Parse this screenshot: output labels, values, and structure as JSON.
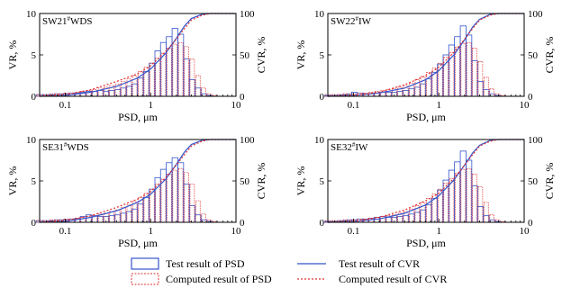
{
  "chart_data": [
    {
      "type": "bar",
      "panel_label": "SW21#WDS",
      "xlabel": "PSD, μm",
      "ylabel_left": "VR, %",
      "ylabel_right": "CVR, %",
      "x_scale": "log",
      "xlim": [
        0.05,
        10
      ],
      "ylim_left": [
        0,
        10
      ],
      "ylim_right": [
        0,
        100
      ],
      "x_ticks": [
        "0.1",
        "1",
        "10"
      ],
      "y_ticks_left": [
        "0",
        "5",
        "10"
      ],
      "y_ticks_right": [
        "0",
        "50",
        "100"
      ],
      "x": [
        0.05,
        0.06,
        0.07,
        0.08,
        0.09,
        0.1,
        0.12,
        0.14,
        0.16,
        0.19,
        0.22,
        0.26,
        0.3,
        0.35,
        0.41,
        0.48,
        0.56,
        0.65,
        0.76,
        0.89,
        1.04,
        1.21,
        1.41,
        1.65,
        1.93,
        2.25,
        2.63,
        3.07,
        3.59,
        4.19,
        4.89,
        5.71,
        6.67
      ],
      "series": [
        {
          "name": "Test result of PSD",
          "values": [
            0.2,
            0.2,
            0.2,
            0.3,
            0.3,
            0.3,
            0.4,
            0.4,
            0.5,
            0.6,
            0.6,
            0.7,
            0.6,
            0.7,
            0.8,
            1.0,
            1.2,
            1.5,
            2.2,
            3.0,
            4.0,
            5.5,
            6.5,
            7.2,
            8.2,
            7.5,
            4.5,
            2.0,
            1.0,
            0.3,
            0.1,
            0.0,
            0.0
          ]
        },
        {
          "name": "Computed result of PSD",
          "values": [
            0.2,
            0.2,
            0.3,
            0.3,
            0.3,
            0.4,
            0.4,
            0.5,
            0.6,
            0.7,
            0.8,
            1.0,
            1.1,
            1.3,
            1.5,
            1.8,
            2.1,
            2.5,
            3.0,
            3.5,
            4.0,
            4.6,
            5.2,
            5.8,
            6.3,
            6.5,
            6.0,
            4.5,
            2.5,
            1.0,
            0.3,
            0.1,
            0.0
          ]
        },
        {
          "name": "Test result of CVR",
          "x": [
            0.05,
            0.1,
            0.2,
            0.4,
            0.7,
            1.0,
            1.5,
            2.0,
            2.5,
            3.0,
            4.0,
            5.0,
            10
          ],
          "values": [
            0,
            1,
            5,
            12,
            22,
            33,
            52,
            70,
            85,
            94,
            99,
            100,
            100
          ]
        },
        {
          "name": "Computed result of CVR",
          "x": [
            0.05,
            0.1,
            0.2,
            0.4,
            0.7,
            1.0,
            1.5,
            2.0,
            2.5,
            3.0,
            4.0,
            5.0,
            10
          ],
          "values": [
            0,
            2,
            8,
            18,
            27,
            37,
            54,
            69,
            82,
            92,
            98,
            100,
            100
          ]
        }
      ]
    },
    {
      "type": "bar",
      "panel_label": "SW22#IW",
      "xlabel": "PSD, μm",
      "ylabel_left": "VR, %",
      "ylabel_right": "CVR, %",
      "x_scale": "log",
      "xlim": [
        0.05,
        10
      ],
      "ylim_left": [
        0,
        10
      ],
      "ylim_right": [
        0,
        100
      ],
      "x_ticks": [
        "0.1",
        "1",
        "10"
      ],
      "y_ticks_left": [
        "0",
        "5",
        "10"
      ],
      "y_ticks_right": [
        "0",
        "50",
        "100"
      ],
      "x": [
        0.05,
        0.06,
        0.07,
        0.08,
        0.09,
        0.1,
        0.12,
        0.14,
        0.16,
        0.19,
        0.22,
        0.26,
        0.3,
        0.35,
        0.41,
        0.48,
        0.56,
        0.65,
        0.76,
        0.89,
        1.04,
        1.21,
        1.41,
        1.65,
        1.93,
        2.25,
        2.63,
        3.07,
        3.59,
        4.19,
        4.89,
        5.71,
        6.67
      ],
      "series": [
        {
          "name": "Test result of PSD",
          "values": [
            0.1,
            0.1,
            0.2,
            0.2,
            0.3,
            0.5,
            0.4,
            0.3,
            0.3,
            0.4,
            0.5,
            0.5,
            0.5,
            0.6,
            0.7,
            0.9,
            1.1,
            1.5,
            2.1,
            2.9,
            3.9,
            5.0,
            6.2,
            7.2,
            8.5,
            7.4,
            4.3,
            1.8,
            0.8,
            0.3,
            0.1,
            0.0,
            0.0
          ]
        },
        {
          "name": "Computed result of PSD",
          "values": [
            0.2,
            0.2,
            0.2,
            0.3,
            0.3,
            0.3,
            0.4,
            0.4,
            0.5,
            0.6,
            0.7,
            0.8,
            0.9,
            1.1,
            1.3,
            1.6,
            2.0,
            2.4,
            2.9,
            3.4,
            4.0,
            4.7,
            5.3,
            5.9,
            6.4,
            6.5,
            5.8,
            4.2,
            2.3,
            0.9,
            0.3,
            0.1,
            0.0
          ]
        },
        {
          "name": "Test result of CVR",
          "x": [
            0.05,
            0.1,
            0.2,
            0.4,
            0.7,
            1.0,
            1.5,
            2.0,
            2.5,
            3.0,
            4.0,
            5.0,
            10
          ],
          "values": [
            0,
            1,
            4,
            10,
            20,
            31,
            50,
            68,
            84,
            93,
            99,
            100,
            100
          ]
        },
        {
          "name": "Computed result of CVR",
          "x": [
            0.05,
            0.1,
            0.2,
            0.4,
            0.7,
            1.0,
            1.5,
            2.0,
            2.5,
            3.0,
            4.0,
            5.0,
            10
          ],
          "values": [
            0,
            1,
            5,
            14,
            25,
            35,
            53,
            69,
            82,
            92,
            98,
            100,
            100
          ]
        }
      ]
    },
    {
      "type": "bar",
      "panel_label": "SE31#WDS",
      "xlabel": "PSD, μm",
      "ylabel_left": "VR, %",
      "ylabel_right": "CVR, %",
      "x_scale": "log",
      "xlim": [
        0.05,
        10
      ],
      "ylim_left": [
        0,
        10
      ],
      "ylim_right": [
        0,
        100
      ],
      "x_ticks": [
        "0.1",
        "1",
        "10"
      ],
      "y_ticks_left": [
        "0",
        "5",
        "10"
      ],
      "y_ticks_right": [
        "0",
        "50",
        "100"
      ],
      "x": [
        0.05,
        0.06,
        0.07,
        0.08,
        0.09,
        0.1,
        0.12,
        0.14,
        0.16,
        0.19,
        0.22,
        0.26,
        0.3,
        0.35,
        0.41,
        0.48,
        0.56,
        0.65,
        0.76,
        0.89,
        1.04,
        1.21,
        1.41,
        1.65,
        1.93,
        2.25,
        2.63,
        3.07,
        3.59,
        4.19,
        4.89,
        5.71,
        6.67
      ],
      "series": [
        {
          "name": "Test result of PSD",
          "values": [
            0.2,
            0.2,
            0.2,
            0.3,
            0.3,
            0.3,
            0.4,
            0.5,
            0.7,
            0.9,
            0.8,
            0.7,
            0.7,
            0.8,
            0.9,
            1.1,
            1.3,
            1.6,
            2.2,
            3.0,
            4.0,
            5.4,
            6.4,
            7.2,
            7.8,
            7.2,
            4.6,
            2.0,
            0.9,
            0.3,
            0.1,
            0.0,
            0.0
          ]
        },
        {
          "name": "Computed result of PSD",
          "values": [
            0.2,
            0.2,
            0.3,
            0.3,
            0.3,
            0.4,
            0.4,
            0.5,
            0.6,
            0.7,
            0.8,
            1.0,
            1.1,
            1.3,
            1.5,
            1.8,
            2.1,
            2.5,
            3.0,
            3.5,
            4.0,
            4.6,
            5.2,
            5.8,
            6.3,
            6.5,
            6.0,
            4.6,
            2.6,
            1.0,
            0.3,
            0.1,
            0.0
          ]
        },
        {
          "name": "Test result of CVR",
          "x": [
            0.05,
            0.1,
            0.2,
            0.4,
            0.7,
            1.0,
            1.5,
            2.0,
            2.5,
            3.0,
            4.0,
            5.0,
            10
          ],
          "values": [
            0,
            1,
            6,
            14,
            24,
            34,
            52,
            70,
            85,
            94,
            99,
            100,
            100
          ]
        },
        {
          "name": "Computed result of CVR",
          "x": [
            0.05,
            0.1,
            0.2,
            0.4,
            0.7,
            1.0,
            1.5,
            2.0,
            2.5,
            3.0,
            4.0,
            5.0,
            10
          ],
          "values": [
            0,
            2,
            8,
            18,
            28,
            37,
            54,
            69,
            82,
            92,
            98,
            100,
            100
          ]
        }
      ]
    },
    {
      "type": "bar",
      "panel_label": "SE32#IW",
      "xlabel": "PSD, μm",
      "ylabel_left": "VR, %",
      "ylabel_right": "CVR, %",
      "x_scale": "log",
      "xlim": [
        0.05,
        10
      ],
      "ylim_left": [
        0,
        10
      ],
      "ylim_right": [
        0,
        100
      ],
      "x_ticks": [
        "0.1",
        "1",
        "10"
      ],
      "y_ticks_left": [
        "0",
        "5",
        "10"
      ],
      "y_ticks_right": [
        "0",
        "50",
        "100"
      ],
      "x": [
        0.05,
        0.06,
        0.07,
        0.08,
        0.09,
        0.1,
        0.12,
        0.14,
        0.16,
        0.19,
        0.22,
        0.26,
        0.3,
        0.35,
        0.41,
        0.48,
        0.56,
        0.65,
        0.76,
        0.89,
        1.04,
        1.21,
        1.41,
        1.65,
        1.93,
        2.25,
        2.63,
        3.07,
        3.59,
        4.19,
        4.89,
        5.71,
        6.67
      ],
      "series": [
        {
          "name": "Test result of PSD",
          "values": [
            0.1,
            0.1,
            0.2,
            0.2,
            0.3,
            0.3,
            0.4,
            0.4,
            0.5,
            0.6,
            0.7,
            0.6,
            0.6,
            0.7,
            0.8,
            1.0,
            1.2,
            1.5,
            2.1,
            2.9,
            3.9,
            5.1,
            6.3,
            7.3,
            8.6,
            7.5,
            4.4,
            1.9,
            0.8,
            0.3,
            0.1,
            0.0,
            0.0
          ]
        },
        {
          "name": "Computed result of PSD",
          "values": [
            0.2,
            0.2,
            0.2,
            0.3,
            0.3,
            0.3,
            0.4,
            0.4,
            0.5,
            0.6,
            0.7,
            0.8,
            0.9,
            1.1,
            1.3,
            1.6,
            2.0,
            2.4,
            2.9,
            3.4,
            4.0,
            4.7,
            5.3,
            5.9,
            6.4,
            6.5,
            5.8,
            4.3,
            2.4,
            0.9,
            0.3,
            0.1,
            0.0
          ]
        },
        {
          "name": "Test result of CVR",
          "x": [
            0.05,
            0.1,
            0.2,
            0.4,
            0.7,
            1.0,
            1.5,
            2.0,
            2.5,
            3.0,
            4.0,
            5.0,
            10
          ],
          "values": [
            0,
            1,
            4,
            11,
            21,
            32,
            51,
            69,
            84,
            93,
            99,
            100,
            100
          ]
        },
        {
          "name": "Computed result of CVR",
          "x": [
            0.05,
            0.1,
            0.2,
            0.4,
            0.7,
            1.0,
            1.5,
            2.0,
            2.5,
            3.0,
            4.0,
            5.0,
            10
          ],
          "values": [
            0,
            1,
            6,
            15,
            26,
            35,
            53,
            69,
            82,
            92,
            98,
            100,
            100
          ]
        }
      ]
    }
  ],
  "legend": {
    "test_psd": "Test result of PSD",
    "computed_psd": "Computed result of PSD",
    "test_cvr": "Test result of CVR",
    "computed_cvr": "Computed result of CVR"
  },
  "colors": {
    "test": "#3355cc",
    "computed": "#e03030",
    "axis": "#000000"
  }
}
